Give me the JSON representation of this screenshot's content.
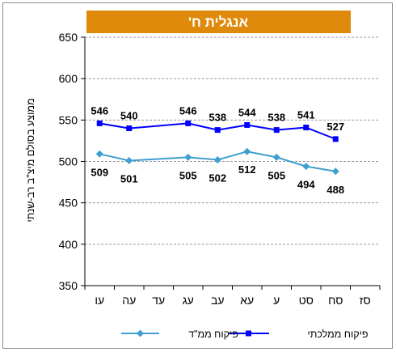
{
  "chart_data": {
    "type": "line",
    "title": "אנגלית ח'",
    "ylabel": "ממוצע בסולם מיצ\"ב רב-שנתי",
    "xlabel": "",
    "ylim": [
      350,
      650
    ],
    "yticks": [
      350,
      400,
      450,
      500,
      550,
      600,
      650
    ],
    "categories": [
      "סז",
      "סח",
      "סט",
      "ע",
      "עא",
      "עב",
      "עג",
      "עד",
      "עה",
      "עו"
    ],
    "grid": true,
    "legend_position": "bottom",
    "series": [
      {
        "name": "פיקוח ממלכתי",
        "color": "#0000ff",
        "marker": "square",
        "values": [
          null,
          527,
          541,
          538,
          544,
          538,
          546,
          null,
          540,
          546
        ]
      },
      {
        "name": "פיקוח ממ\"ד",
        "color": "#3f9fcf",
        "marker": "diamond",
        "values": [
          null,
          488,
          494,
          505,
          512,
          502,
          505,
          null,
          501,
          509
        ]
      }
    ]
  }
}
